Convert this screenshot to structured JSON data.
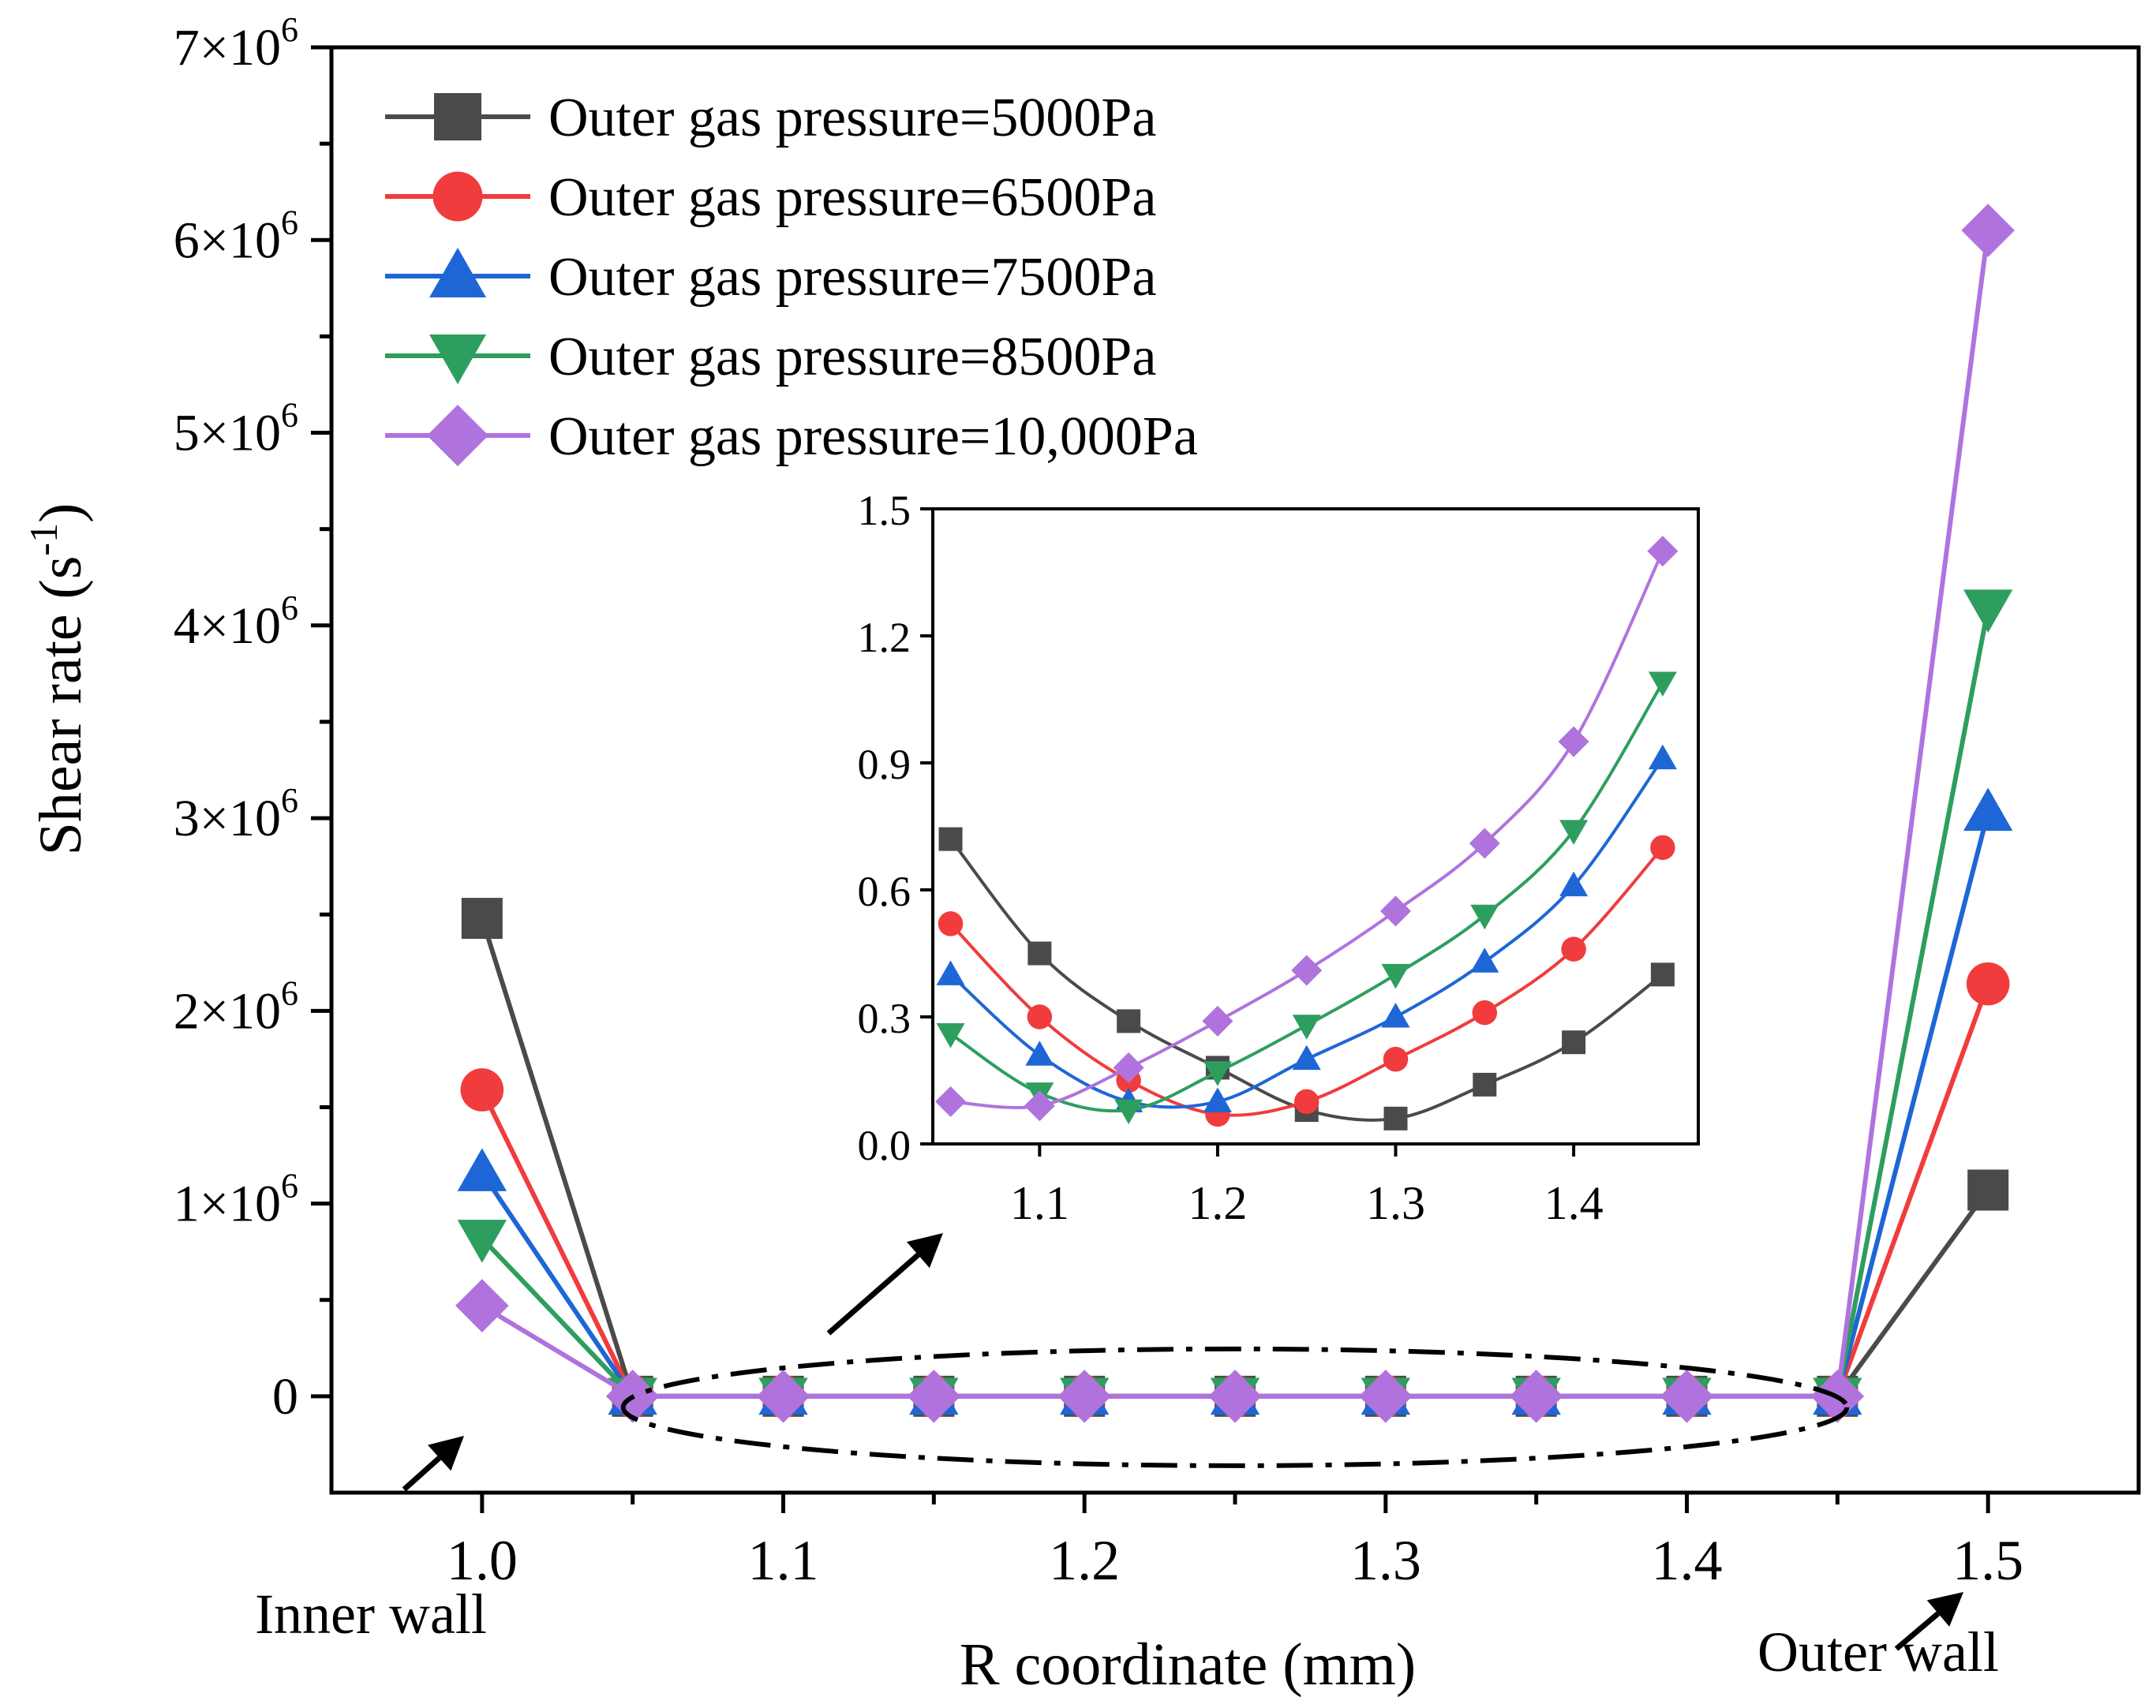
{
  "chart_data": [
    {
      "id": "main",
      "type": "line",
      "xlabel": "R coordinate (mm)",
      "ylabel_text": "Shear rate (s",
      "ylabel_sup": "-1",
      "ylabel_close": ")",
      "xlim": [
        0.95,
        1.55
      ],
      "ylim": [
        -500000,
        7000000
      ],
      "x_ticks": [
        {
          "v": 1.0,
          "label": "1.0"
        },
        {
          "v": 1.1,
          "label": "1.1"
        },
        {
          "v": 1.2,
          "label": "1.2"
        },
        {
          "v": 1.3,
          "label": "1.3"
        },
        {
          "v": 1.4,
          "label": "1.4"
        },
        {
          "v": 1.5,
          "label": "1.5"
        }
      ],
      "x_minor_ticks": [
        1.05,
        1.15,
        1.25,
        1.35,
        1.45
      ],
      "y_ticks": [
        {
          "v": 0,
          "label": "0",
          "exp": ""
        },
        {
          "v": 1000000,
          "label": "1×10",
          "exp": "6"
        },
        {
          "v": 2000000,
          "label": "2×10",
          "exp": "6"
        },
        {
          "v": 3000000,
          "label": "3×10",
          "exp": "6"
        },
        {
          "v": 4000000,
          "label": "4×10",
          "exp": "6"
        },
        {
          "v": 5000000,
          "label": "5×10",
          "exp": "6"
        },
        {
          "v": 6000000,
          "label": "6×10",
          "exp": "6"
        },
        {
          "v": 7000000,
          "label": "7×10",
          "exp": "6"
        }
      ],
      "y_minor_ticks": [
        500000,
        1500000,
        2500000,
        3500000,
        4500000,
        5500000,
        6500000
      ],
      "x": [
        1.0,
        1.05,
        1.1,
        1.15,
        1.2,
        1.25,
        1.3,
        1.35,
        1.4,
        1.45,
        1.5
      ],
      "series": [
        {
          "name": "Outer gas pressure=5000Pa",
          "color": "#4a4a4a",
          "marker": "square",
          "values": [
            2480000,
            0,
            0,
            0,
            0,
            0,
            0,
            0,
            0,
            0,
            1070000
          ]
        },
        {
          "name": "Outer gas pressure=6500Pa",
          "color": "#f03c3c",
          "marker": "circle",
          "values": [
            1590000,
            0,
            0,
            0,
            0,
            0,
            0,
            0,
            0,
            0,
            2140000
          ]
        },
        {
          "name": "Outer gas pressure=7500Pa",
          "color": "#1e66d6",
          "marker": "triangle-up",
          "values": [
            1160000,
            0,
            0,
            0,
            0,
            0,
            0,
            0,
            0,
            0,
            3030000
          ]
        },
        {
          "name": "Outer gas pressure=8500Pa",
          "color": "#2e9e5e",
          "marker": "triangle-down",
          "values": [
            820000,
            0,
            0,
            0,
            0,
            0,
            0,
            0,
            0,
            0,
            4090000
          ]
        },
        {
          "name": "Outer gas pressure=10,000Pa",
          "color": "#b073dd",
          "marker": "diamond",
          "values": [
            470000,
            0,
            0,
            0,
            0,
            0,
            0,
            0,
            0,
            0,
            6050000
          ]
        }
      ],
      "legend_position": "top-left",
      "annotations": [
        {
          "text": "Inner wall"
        },
        {
          "text": "Outer wall"
        }
      ]
    },
    {
      "id": "inset",
      "type": "line",
      "xlim": [
        1.04,
        1.47
      ],
      "ylim": [
        0,
        1.5
      ],
      "x_ticks": [
        {
          "v": 1.1,
          "label": "1.1"
        },
        {
          "v": 1.2,
          "label": "1.2"
        },
        {
          "v": 1.3,
          "label": "1.3"
        },
        {
          "v": 1.4,
          "label": "1.4"
        }
      ],
      "y_ticks": [
        {
          "v": 0.0,
          "label": "0.0"
        },
        {
          "v": 0.3,
          "label": "0.3"
        },
        {
          "v": 0.6,
          "label": "0.6"
        },
        {
          "v": 0.9,
          "label": "0.9"
        },
        {
          "v": 1.2,
          "label": "1.2"
        },
        {
          "v": 1.5,
          "label": "1.5"
        }
      ],
      "x": [
        1.05,
        1.1,
        1.15,
        1.2,
        1.25,
        1.3,
        1.35,
        1.4,
        1.45
      ],
      "series": [
        {
          "name": "Outer gas pressure=5000Pa",
          "color": "#4a4a4a",
          "marker": "square",
          "values": [
            0.72,
            0.45,
            0.29,
            0.18,
            0.08,
            0.06,
            0.14,
            0.24,
            0.4
          ]
        },
        {
          "name": "Outer gas pressure=6500Pa",
          "color": "#f03c3c",
          "marker": "circle",
          "values": [
            0.52,
            0.3,
            0.15,
            0.07,
            0.1,
            0.2,
            0.31,
            0.46,
            0.7
          ]
        },
        {
          "name": "Outer gas pressure=7500Pa",
          "color": "#1e66d6",
          "marker": "triangle-up",
          "values": [
            0.4,
            0.21,
            0.1,
            0.1,
            0.2,
            0.3,
            0.43,
            0.61,
            0.91
          ]
        },
        {
          "name": "Outer gas pressure=8500Pa",
          "color": "#2e9e5e",
          "marker": "triangle-down",
          "values": [
            0.26,
            0.12,
            0.08,
            0.17,
            0.28,
            0.4,
            0.54,
            0.74,
            1.09
          ]
        },
        {
          "name": "Outer gas pressure=10,000Pa",
          "color": "#b073dd",
          "marker": "diamond",
          "values": [
            0.1,
            0.09,
            0.18,
            0.29,
            0.41,
            0.55,
            0.71,
            0.95,
            1.4
          ]
        }
      ]
    }
  ]
}
